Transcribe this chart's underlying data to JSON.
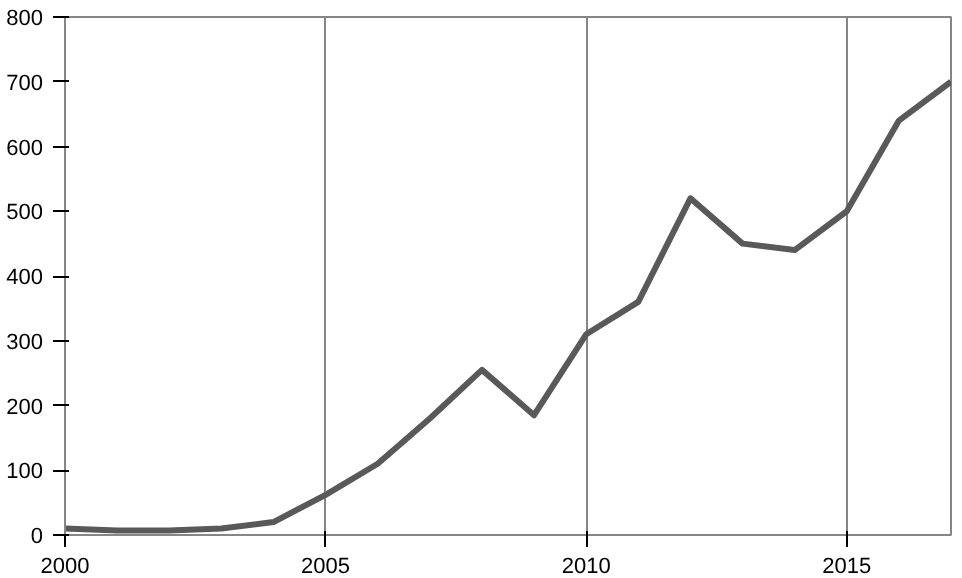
{
  "chart_data": {
    "type": "line",
    "x": [
      2000,
      2001,
      2002,
      2003,
      2004,
      2005,
      2006,
      2007,
      2008,
      2009,
      2010,
      2011,
      2012,
      2013,
      2014,
      2015,
      2016,
      2017
    ],
    "series": [
      {
        "color": "#595959",
        "values": [
          10,
          7,
          7,
          10,
          20,
          62,
          110,
          180,
          255,
          185,
          310,
          360,
          520,
          450,
          440,
          500,
          640,
          700
        ]
      }
    ],
    "xlim": [
      2000,
      2017
    ],
    "ylim": [
      0,
      800
    ],
    "xticks": [
      2000,
      2005,
      2010,
      2015
    ],
    "yticks": [
      0,
      100,
      200,
      300,
      400,
      500,
      600,
      700,
      800
    ],
    "grid": "x",
    "marker": "none",
    "line_style": "solid"
  }
}
